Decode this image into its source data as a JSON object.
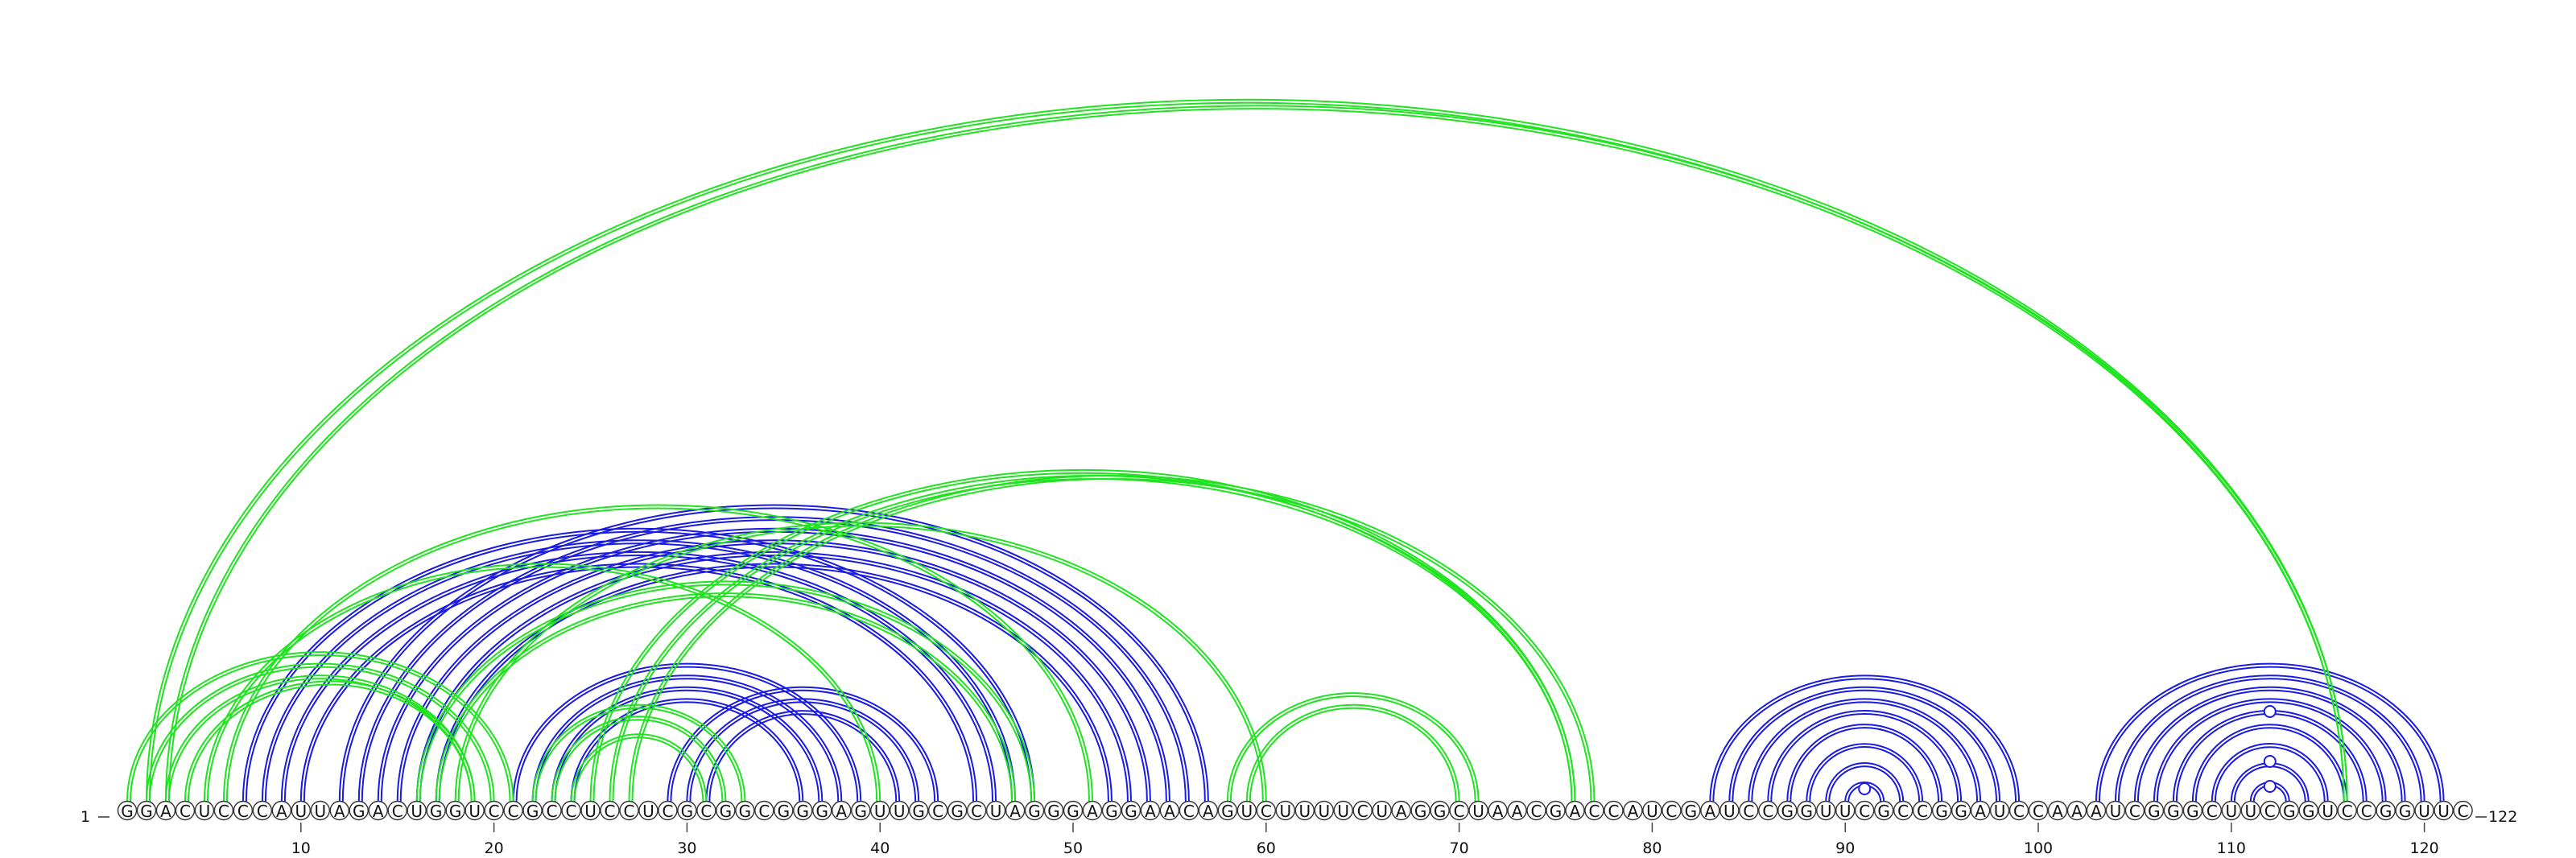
{
  "sequence": "GGACUCCCAUUAGACUGGUCCGCCUCCUCGCGGCGGGAGUUGCGCUAGGGAGGAACAGUCUUUUCUAGGCUAACGACCAUCGAUCCGGUUCGCCGGAUCCAAAUCGGGCUUCGGUCCGGUUC",
  "start_label": "1",
  "end_label": "122",
  "tick_labels": [
    "10",
    "20",
    "30",
    "40",
    "50",
    "60",
    "70",
    "80",
    "90",
    "100",
    "110",
    "120"
  ],
  "colors": {
    "blue_pairs": "#1a1ae0",
    "green_pairs": "#1ee31e",
    "circle_stroke": "#333333"
  },
  "blue_pairs": [
    [
      7,
      48
    ],
    [
      8,
      47
    ],
    [
      9,
      46
    ],
    [
      10,
      45
    ],
    [
      12,
      57
    ],
    [
      13,
      56
    ],
    [
      14,
      55
    ],
    [
      15,
      54
    ],
    [
      16,
      53
    ],
    [
      17,
      52
    ],
    [
      21,
      39
    ],
    [
      22,
      38
    ],
    [
      23,
      37
    ],
    [
      24,
      36
    ],
    [
      29,
      43
    ],
    [
      30,
      42
    ],
    [
      31,
      41
    ],
    [
      83,
      99
    ],
    [
      84,
      98
    ],
    [
      85,
      97
    ],
    [
      86,
      96
    ],
    [
      87,
      95
    ],
    [
      88,
      94
    ],
    [
      89,
      93
    ],
    [
      90,
      92
    ],
    [
      103,
      121
    ],
    [
      104,
      120
    ],
    [
      105,
      119
    ],
    [
      106,
      118
    ],
    [
      107,
      117
    ],
    [
      108,
      116
    ],
    [
      109,
      115
    ],
    [
      110,
      114
    ],
    [
      111,
      113
    ]
  ],
  "green_pairs": [
    [
      2,
      116
    ],
    [
      3,
      116
    ],
    [
      1,
      21
    ],
    [
      2,
      20
    ],
    [
      3,
      19
    ],
    [
      4,
      19
    ],
    [
      5,
      40
    ],
    [
      6,
      51
    ],
    [
      16,
      48
    ],
    [
      17,
      47
    ],
    [
      18,
      60
    ],
    [
      22,
      33
    ],
    [
      23,
      32
    ],
    [
      24,
      31
    ],
    [
      25,
      76
    ],
    [
      26,
      76
    ],
    [
      27,
      77
    ],
    [
      58,
      71
    ],
    [
      59,
      70
    ]
  ],
  "markers": [
    91,
    112,
    112,
    112
  ]
}
